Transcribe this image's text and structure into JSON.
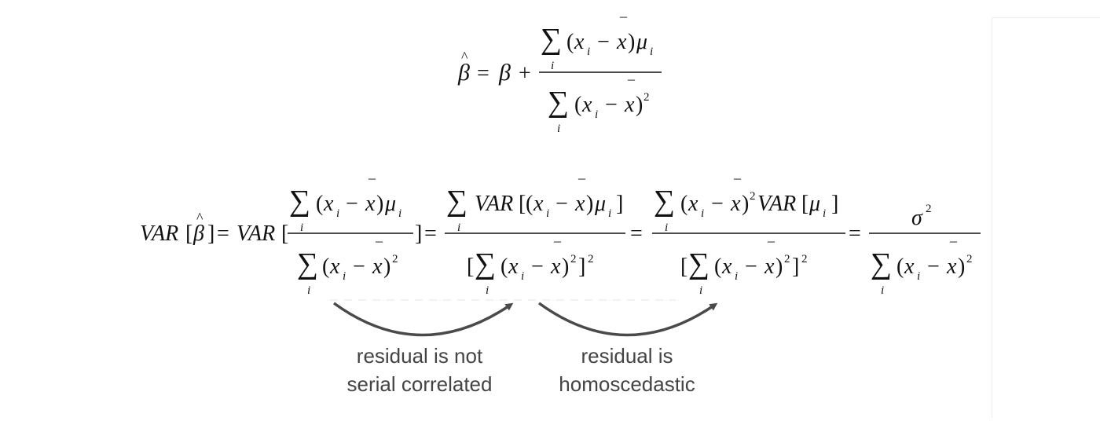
{
  "formula_top": {
    "beta_hat": "β",
    "hat": "^",
    "equals": "=",
    "beta": "β",
    "plus": "+",
    "sum": "∑",
    "index_i": "i",
    "lparen": "(",
    "x": "x",
    "minus": "−",
    "xbar": "x",
    "bar": "_",
    "rparen": ")",
    "mu": "μ",
    "square": "2"
  },
  "formula_bottom": {
    "var": "VAR",
    "lbracket": "[",
    "rbracket": "]",
    "beta": "β",
    "hat": "^",
    "equals": "=",
    "sigma": "σ",
    "square": "2"
  },
  "annotations": {
    "left_line1": "residual is not",
    "left_line2": "serial correlated",
    "right_line1": "residual is",
    "right_line2": "homoscedastic"
  },
  "colors": {
    "arrow": "#4a4a4a",
    "caption": "#444444",
    "math": "#111111"
  }
}
